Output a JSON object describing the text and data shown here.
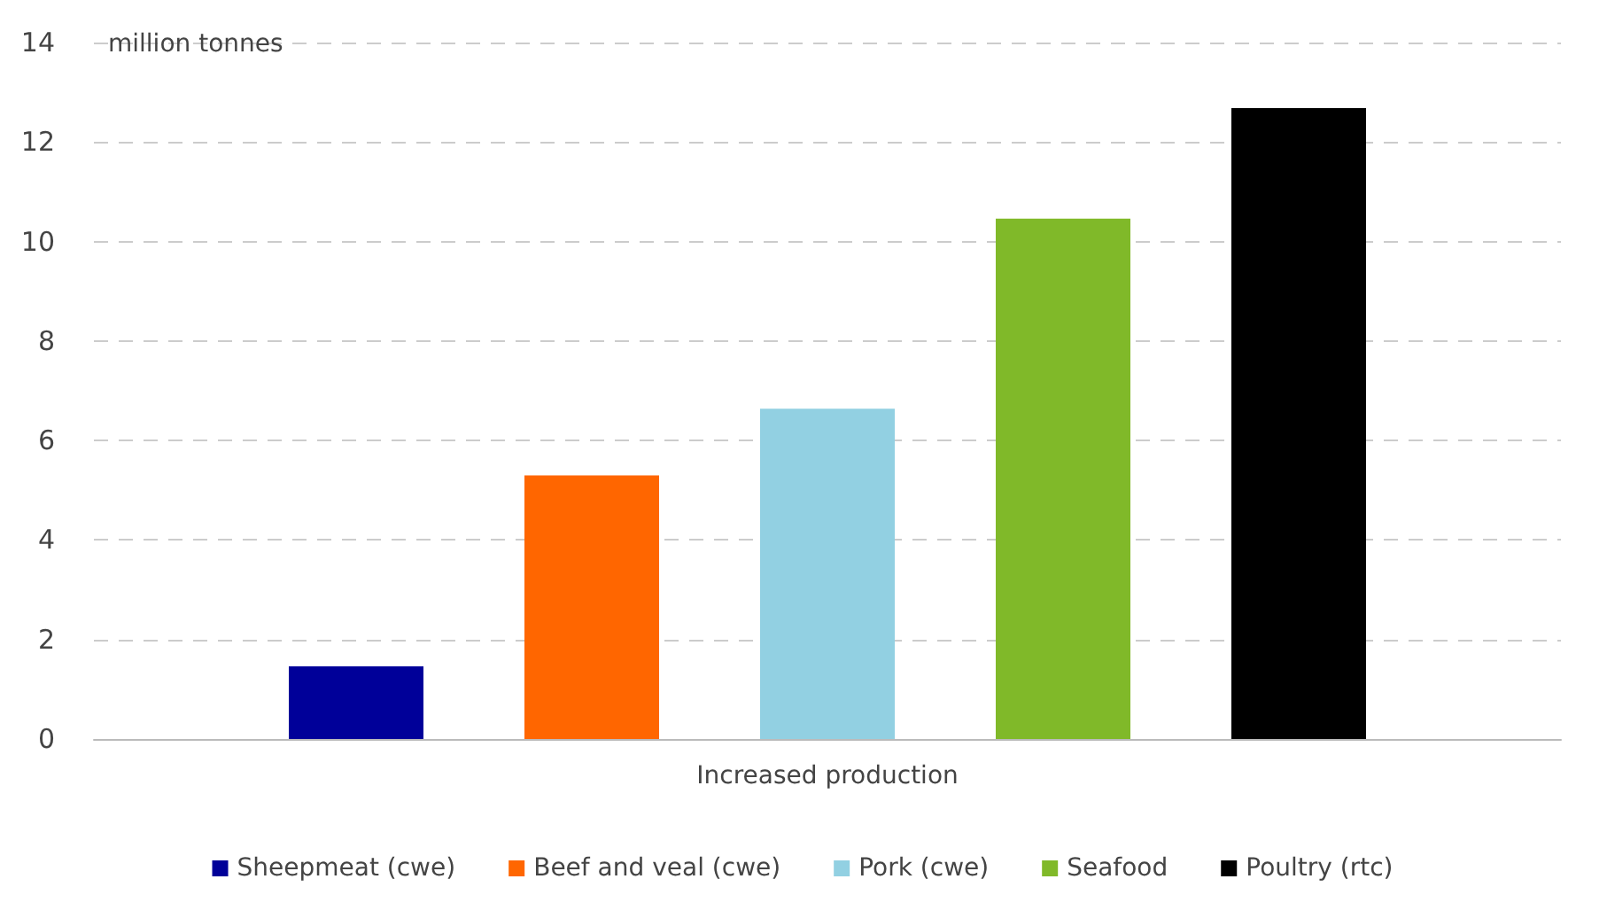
{
  "chart_data": {
    "type": "bar",
    "ylabel": "million tonnes",
    "categories": [
      "Increased production"
    ],
    "series": [
      {
        "name": "Sheepmeat (cwe)",
        "color": "#000099",
        "values": [
          1.46
        ]
      },
      {
        "name": "Beef and veal (cwe)",
        "color": "#ff6600",
        "values": [
          5.3
        ]
      },
      {
        "name": "Pork (cwe)",
        "color": "#92d0e2",
        "values": [
          6.64
        ]
      },
      {
        "name": "Seafood",
        "color": "#80b929",
        "values": [
          10.46
        ]
      },
      {
        "name": "Poultry (rtc)",
        "color": "#000000",
        "values": [
          12.68
        ]
      }
    ],
    "ylim": [
      0,
      14
    ],
    "yticks": [
      0,
      2,
      4,
      6,
      8,
      10,
      12,
      14
    ],
    "grid": "y",
    "legend": "bottom"
  }
}
